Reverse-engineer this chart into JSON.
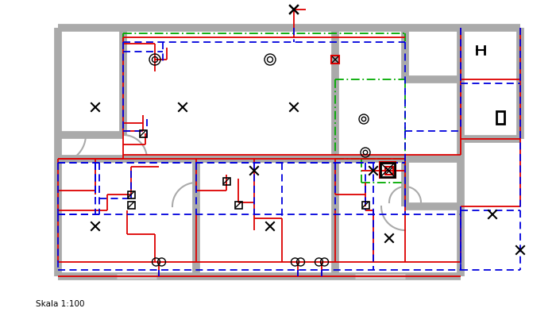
{
  "figsize": [
    7.0,
    3.93
  ],
  "dpi": 100,
  "bg_color": "#ffffff",
  "wall_color": "#aaaaaa",
  "wall_lw": 7,
  "red_color": "#dd0000",
  "blue_color": "#0000dd",
  "green_color": "#00aa00",
  "red_lw": 1.3,
  "blue_lw": 1.3,
  "green_lw": 1.3,
  "label_text": "Skala 1:100",
  "label_fontsize": 7.5
}
